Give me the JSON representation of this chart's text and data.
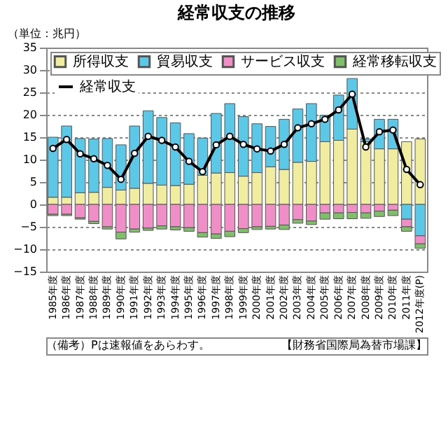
{
  "chart_data": {
    "type": "bar",
    "stacked": true,
    "title": "経常収支の推移",
    "ylabel": "（単位：兆円）",
    "categories": [
      "1985年度",
      "1986年度",
      "1987年度",
      "1988年度",
      "1989年度",
      "1990年度",
      "1991年度",
      "1992年度",
      "1993年度",
      "1994年度",
      "1995年度",
      "1996年度",
      "1997年度",
      "1998年度",
      "1999年度",
      "2000年度",
      "2001年度",
      "2002年度",
      "2003年度",
      "2004年度",
      "2005年度",
      "2006年度",
      "2007年度",
      "2008年度",
      "2009年度",
      "2010年度",
      "2011年度",
      "2012年度(P)"
    ],
    "series": [
      {
        "name": "所得収支",
        "color": "#f0eca0",
        "values": [
          1.6,
          1.6,
          2.6,
          2.7,
          3.8,
          3.2,
          3.6,
          4.7,
          4.3,
          4.2,
          4.5,
          6.5,
          7.0,
          7.1,
          6.3,
          7.1,
          8.4,
          7.8,
          9.4,
          9.6,
          14.0,
          14.3,
          16.8,
          14.0,
          12.4,
          12.4,
          14.0,
          14.6
        ]
      },
      {
        "name": "貿易収支",
        "color": "#5bc8e8",
        "values": [
          13.4,
          15.9,
          12.1,
          11.9,
          10.9,
          10.1,
          13.9,
          16.2,
          15.1,
          14.0,
          11.3,
          8.3,
          13.3,
          15.4,
          13.3,
          10.9,
          9.0,
          11.2,
          11.9,
          12.9,
          5.9,
          10.1,
          11.3,
          0.6,
          6.6,
          6.6,
          -3.3,
          -7.0
        ]
      },
      {
        "name": "サービス収支",
        "color": "#f08ec8",
        "values": [
          -2.2,
          -2.2,
          -3.0,
          -3.8,
          -5.0,
          -6.2,
          -5.5,
          -5.3,
          -4.8,
          -5.0,
          -5.2,
          -6.3,
          -6.6,
          -6.0,
          -5.4,
          -5.0,
          -4.9,
          -4.6,
          -3.4,
          -3.7,
          -1.9,
          -1.9,
          -1.8,
          -1.9,
          -1.5,
          -1.3,
          -1.7,
          -1.8
        ]
      },
      {
        "name": "経常移転収支",
        "color": "#7fbf6a",
        "values": [
          -0.3,
          -0.3,
          -0.3,
          -0.5,
          -0.5,
          -1.5,
          -0.7,
          -0.5,
          -0.7,
          -0.7,
          -0.8,
          -1.0,
          -1.0,
          -1.2,
          -0.9,
          -0.6,
          -0.6,
          -1.0,
          -0.8,
          -0.8,
          -1.4,
          -1.3,
          -1.4,
          -1.2,
          -1.2,
          -1.2,
          -1.0,
          -1.0
        ]
      },
      {
        "name": "経常収支",
        "type": "line",
        "color": "#000000",
        "marker": "circle",
        "values": [
          12.5,
          14.5,
          11.3,
          10.2,
          8.7,
          5.6,
          11.4,
          15.2,
          14.3,
          12.8,
          9.6,
          7.3,
          13.3,
          15.2,
          13.4,
          12.4,
          11.9,
          13.4,
          17.1,
          18.0,
          19.0,
          21.1,
          24.6,
          12.8,
          16.2,
          16.6,
          7.8,
          4.4
        ]
      }
    ],
    "ylim": [
      -15,
      35
    ],
    "yticks": [
      -15,
      -10,
      -5,
      0,
      5,
      10,
      15,
      20,
      25,
      30,
      35
    ],
    "grid": "y",
    "legend": "top",
    "annotations": [
      "（備考）Pは速報値をあらわす。",
      "【財務省国際局為替市場課】"
    ]
  }
}
